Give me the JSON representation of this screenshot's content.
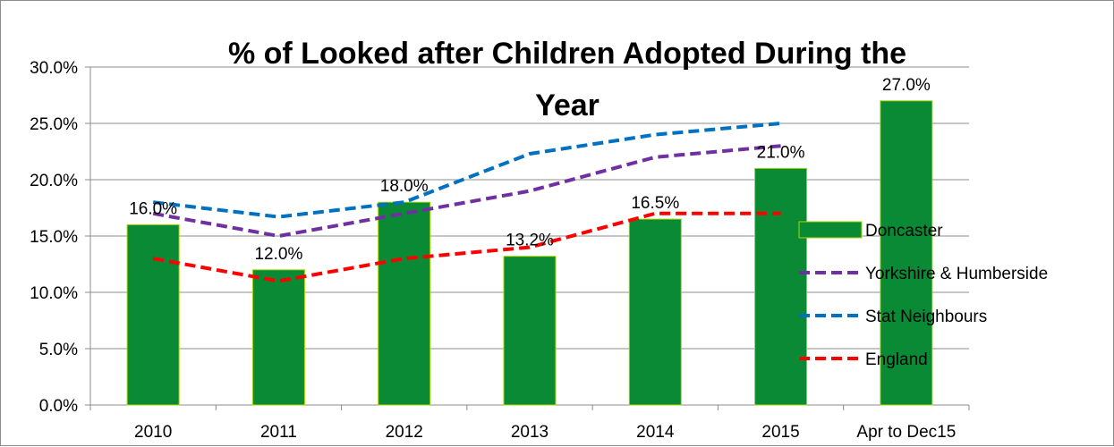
{
  "chart_data": {
    "type": "bar",
    "title_line1": "% of Looked after Children Adopted During the",
    "title_line2": "Year",
    "categories": [
      "2010",
      "2011",
      "2012",
      "2013",
      "2014",
      "2015",
      "Apr to Dec15"
    ],
    "ylim": [
      0,
      30
    ],
    "yticks": [
      "0.0%",
      "5.0%",
      "10.0%",
      "15.0%",
      "20.0%",
      "25.0%",
      "30.0%"
    ],
    "grid": true,
    "legend_position": "right",
    "series": [
      {
        "name": "Doncaster",
        "kind": "bar",
        "color": "#0a8a35",
        "values": [
          16.0,
          12.0,
          18.0,
          13.2,
          16.5,
          21.0,
          27.0
        ],
        "labels": [
          "16.0%",
          "12.0%",
          "18.0%",
          "13.2%",
          "16.5%",
          "21.0%",
          "27.0%"
        ]
      },
      {
        "name": "Yorkshire & Humberside",
        "kind": "line",
        "color": "#7030a0",
        "values": [
          17.0,
          15.0,
          17.0,
          19.0,
          22.0,
          23.0,
          null
        ]
      },
      {
        "name": "Stat Neighbours",
        "kind": "line",
        "color": "#0070c0",
        "values": [
          18.0,
          16.7,
          18.0,
          22.3,
          24.0,
          25.0,
          null
        ]
      },
      {
        "name": "England",
        "kind": "line",
        "color": "#ff0000",
        "values": [
          13.0,
          11.0,
          13.0,
          14.0,
          17.0,
          17.0,
          null
        ]
      }
    ]
  }
}
